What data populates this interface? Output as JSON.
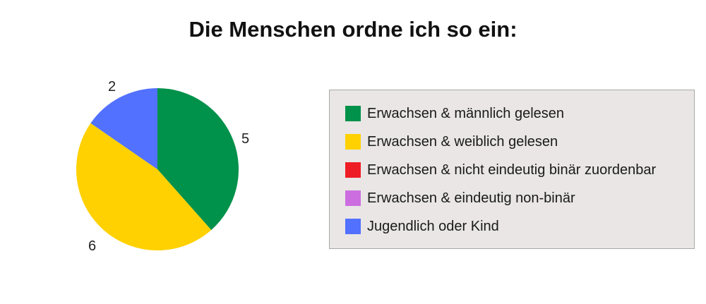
{
  "chart_data": {
    "type": "pie",
    "title": "Die Menschen ordne ich so ein:",
    "categories": [
      "Erwachsen & männlich gelesen",
      "Erwachsen & weiblich gelesen",
      "Erwachsen & nicht eindeutig binär zuordenbar",
      "Erwachsen & eindeutig non-binär",
      "Jugendlich oder Kind"
    ],
    "values": [
      5,
      6,
      0,
      0,
      2
    ],
    "data_labels": [
      "5",
      "6",
      "",
      "",
      "2"
    ],
    "colors": [
      "#00914a",
      "#ffd100",
      "#ee1c25",
      "#cc6ee0",
      "#5271ff"
    ],
    "legend_placement": "right"
  }
}
